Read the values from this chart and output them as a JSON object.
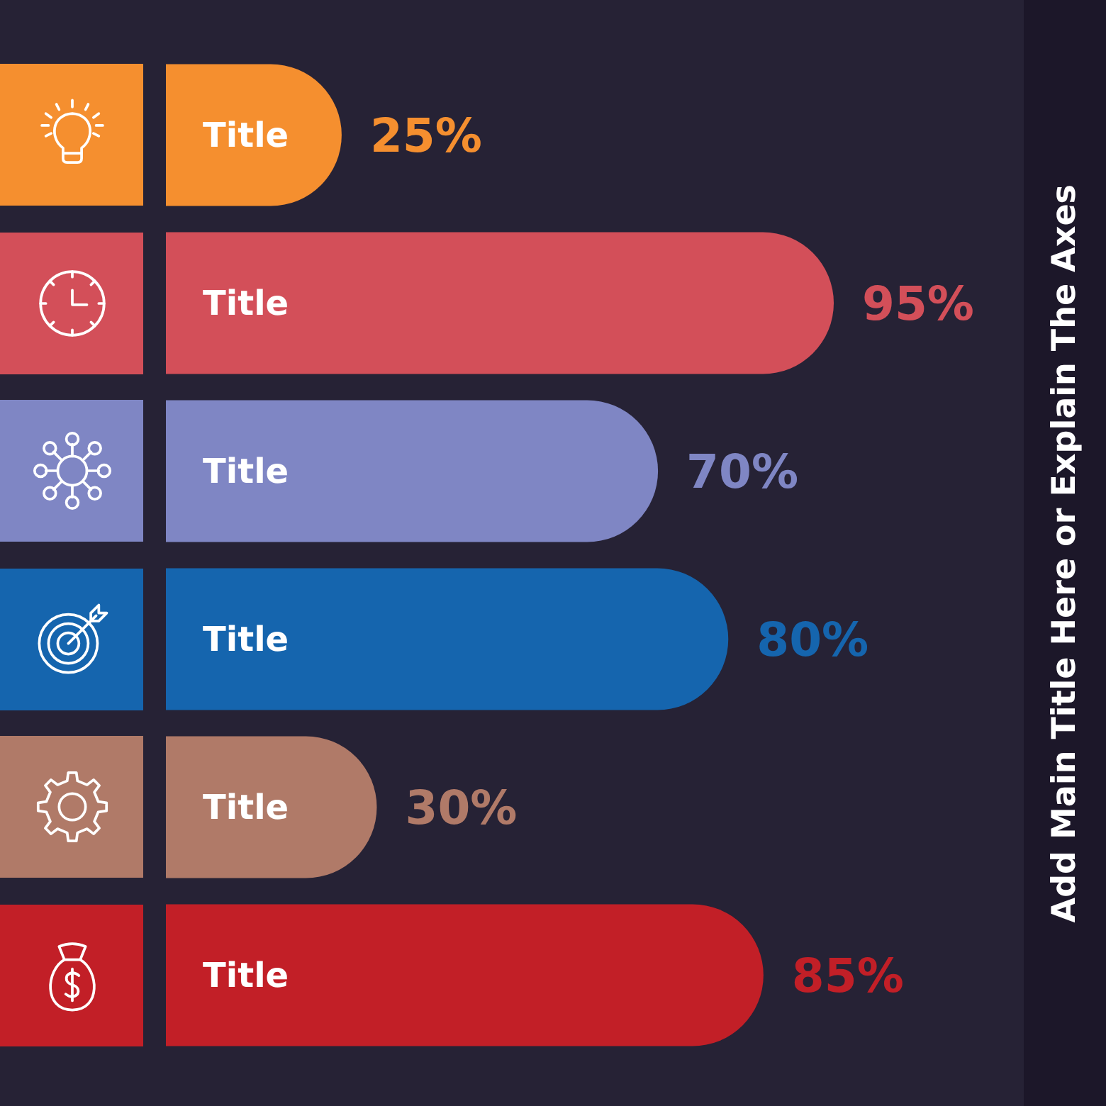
{
  "chart_data": {
    "type": "bar",
    "orientation": "horizontal",
    "title": "Add Main Title Here or Explain The Axes",
    "categories": [
      "Title",
      "Title",
      "Title",
      "Title",
      "Title",
      "Title"
    ],
    "values": [
      25,
      95,
      70,
      80,
      30,
      85
    ],
    "colors": [
      "#f58f2f",
      "#d34f59",
      "#7f86c4",
      "#1565ae",
      "#b07a68",
      "#c21f27"
    ],
    "value_labels": [
      "25%",
      "95%",
      "70%",
      "80%",
      "30%",
      "85%"
    ]
  }
}
